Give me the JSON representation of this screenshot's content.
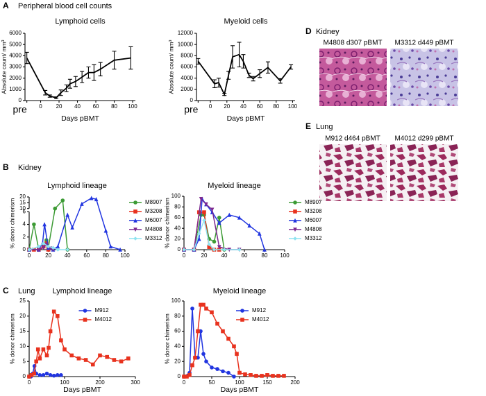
{
  "panels": [
    {
      "letter": "A",
      "title": "Peripheral blood cell counts"
    },
    {
      "letter": "B",
      "title": "Kidney"
    },
    {
      "letter": "C",
      "title": "Lung"
    },
    {
      "letter": "D",
      "title": "Kidney",
      "images": [
        "M4808 d307 pBMT",
        "M3312 d449 pBMT"
      ]
    },
    {
      "letter": "E",
      "title": "Lung",
      "images": [
        "M912 d464 pBMT",
        "M4012 d299 pBMT"
      ]
    }
  ],
  "chart_data": [
    {
      "type": "line",
      "title": "Lymphoid cells",
      "xlabel": "Days pBMT",
      "ylabel": "Absolute count/ mm³",
      "x": [
        -15,
        5,
        10,
        17,
        22,
        28,
        32,
        38,
        45,
        52,
        58,
        65,
        80,
        98
      ],
      "values": [
        3800,
        700,
        400,
        250,
        700,
        1100,
        1500,
        1700,
        2100,
        2500,
        2500,
        2800,
        3600,
        3800
      ],
      "errors": [
        500,
        200,
        100,
        80,
        250,
        300,
        400,
        450,
        500,
        500,
        700,
        600,
        800,
        1000
      ],
      "color": "#000000",
      "xlim": [
        -17,
        103
      ],
      "xticks": [
        {
          "value": -15,
          "label": "pre"
        },
        0,
        20,
        40,
        60,
        80,
        100
      ],
      "ylim": [
        0,
        6000
      ],
      "yticks": [
        0,
        1000,
        2000,
        3000,
        4000,
        5000,
        6000
      ]
    },
    {
      "type": "line",
      "title": "Myeloid cells",
      "xlabel": "Days pBMT",
      "ylabel": "Absolute count/ mm³",
      "x": [
        -15,
        5,
        10,
        17,
        22,
        27,
        35,
        40,
        47,
        52,
        60,
        70,
        85,
        98
      ],
      "values": [
        7000,
        3000,
        3200,
        1100,
        4500,
        7800,
        8200,
        7000,
        4500,
        3900,
        4800,
        5900,
        3500,
        6000
      ],
      "errors": [
        500,
        700,
        800,
        200,
        700,
        2000,
        2200,
        1200,
        400,
        400,
        700,
        1000,
        400,
        400
      ],
      "color": "#000000",
      "xlim": [
        -17,
        103
      ],
      "xticks": [
        {
          "value": -15,
          "label": "pre"
        },
        0,
        20,
        40,
        60,
        80,
        100
      ],
      "ylim": [
        0,
        12000
      ],
      "yticks": [
        0,
        2000,
        4000,
        6000,
        8000,
        10000,
        12000
      ]
    },
    {
      "type": "line",
      "title": "Lymphoid lineage",
      "ylabel": "% donor chimerism",
      "xlim": [
        0,
        100
      ],
      "xticks": [
        0,
        20,
        40,
        60,
        80,
        100
      ],
      "ylim": [
        0,
        20
      ],
      "yticks": [
        0,
        2,
        4,
        6,
        10,
        15,
        20
      ],
      "y_segments": [
        [
          0,
          6
        ],
        [
          10,
          20
        ]
      ],
      "legend": "right",
      "series": [
        {
          "name": "M8907",
          "color": "#3d9b35",
          "marker": "circle",
          "x": [
            0,
            5,
            10,
            15,
            18,
            20,
            27,
            35,
            40
          ],
          "values": [
            0,
            4,
            0,
            0.5,
            1.5,
            0.3,
            10,
            17,
            0
          ]
        },
        {
          "name": "M3208",
          "color": "#e8321e",
          "marker": "square",
          "x": [
            0,
            5,
            10,
            15,
            18,
            20
          ],
          "values": [
            0,
            0,
            0,
            0.5,
            1,
            0
          ]
        },
        {
          "name": "M6007",
          "color": "#2135e0",
          "marker": "triangle",
          "x": [
            0,
            10,
            14,
            16,
            20,
            25,
            30,
            40,
            45,
            55,
            65,
            70,
            80,
            85,
            95
          ],
          "values": [
            0,
            0,
            1,
            4,
            0.3,
            0,
            0.5,
            5.5,
            3.5,
            14,
            19,
            18,
            3,
            0.5,
            0
          ]
        },
        {
          "name": "M4808",
          "color": "#7d2a90",
          "marker": "triangle-down",
          "x": [
            0,
            10,
            15,
            18,
            22,
            25
          ],
          "values": [
            0,
            0,
            0.3,
            0.8,
            0.2,
            0
          ]
        },
        {
          "name": "M3312",
          "color": "#8fe3f0",
          "marker": "diamond",
          "x": [
            0,
            10,
            15,
            20,
            25,
            30,
            40
          ],
          "values": [
            0,
            0.5,
            1,
            0.5,
            0.3,
            0,
            0
          ]
        }
      ]
    },
    {
      "type": "line",
      "title": "Myeloid lineage",
      "ylabel": "% donor chimerism",
      "xlim": [
        0,
        100
      ],
      "xticks": [
        0,
        20,
        40,
        60,
        80,
        100
      ],
      "ylim": [
        0,
        100
      ],
      "yticks": [
        0,
        20,
        40,
        60,
        80,
        100
      ],
      "legend": "right",
      "series": [
        {
          "name": "M8907",
          "color": "#3d9b35",
          "marker": "circle",
          "x": [
            0,
            10,
            17,
            20,
            25,
            30,
            35,
            40
          ],
          "values": [
            0,
            0,
            65,
            65,
            20,
            15,
            60,
            0
          ]
        },
        {
          "name": "M3208",
          "color": "#e8321e",
          "marker": "square",
          "x": [
            0,
            10,
            15,
            20,
            25,
            30,
            35
          ],
          "values": [
            0,
            0,
            70,
            70,
            5,
            0,
            0
          ]
        },
        {
          "name": "M6007",
          "color": "#2135e0",
          "marker": "triangle",
          "x": [
            0,
            10,
            15,
            18,
            22,
            28,
            35,
            45,
            55,
            65,
            75,
            80
          ],
          "values": [
            0,
            0,
            20,
            95,
            85,
            70,
            50,
            65,
            60,
            45,
            30,
            0
          ]
        },
        {
          "name": "M4808",
          "color": "#7d2a90",
          "marker": "triangle-down",
          "x": [
            0,
            10,
            17,
            22,
            28,
            35,
            45,
            55
          ],
          "values": [
            0,
            0,
            95,
            85,
            75,
            5,
            0,
            0
          ]
        },
        {
          "name": "M3312",
          "color": "#8fe3f0",
          "marker": "diamond",
          "x": [
            0,
            10,
            15,
            20,
            25,
            30,
            40,
            55
          ],
          "values": [
            0,
            0,
            30,
            55,
            10,
            0,
            0,
            0
          ]
        }
      ]
    },
    {
      "type": "line",
      "title": "Lymphoid lineage",
      "xlabel": "Days pBMT",
      "ylabel": "% donor chimerism",
      "xlim": [
        0,
        300
      ],
      "xticks": [
        0,
        100,
        200,
        300
      ],
      "ylim": [
        0,
        25
      ],
      "yticks": [
        0,
        5,
        10,
        15,
        20,
        25
      ],
      "legend": "upper center",
      "series": [
        {
          "name": "M912",
          "color": "#2135e0",
          "marker": "circle",
          "x": [
            0,
            5,
            10,
            15,
            20,
            30,
            40,
            50,
            60,
            70,
            80,
            90
          ],
          "values": [
            0,
            0,
            1,
            3.5,
            1,
            0.5,
            0.5,
            1,
            0.5,
            0.3,
            0.5,
            0.5
          ]
        },
        {
          "name": "M4012",
          "color": "#e8321e",
          "marker": "square",
          "x": [
            0,
            7,
            14,
            20,
            25,
            30,
            40,
            50,
            55,
            60,
            70,
            80,
            90,
            100,
            120,
            140,
            160,
            180,
            200,
            220,
            240,
            260,
            280
          ],
          "values": [
            0,
            0.5,
            1,
            5,
            9,
            6,
            9,
            7,
            9.5,
            15,
            21.5,
            20,
            12,
            9,
            7,
            6,
            5.5,
            4,
            7,
            6.5,
            5.5,
            5,
            6
          ]
        }
      ]
    },
    {
      "type": "line",
      "title": "Myeloid lineage",
      "xlabel": "Days pBMT",
      "ylabel": "% donor chimerism",
      "xlim": [
        0,
        200
      ],
      "xticks": [
        0,
        50,
        100,
        150,
        200
      ],
      "ylim": [
        0,
        100
      ],
      "yticks": [
        0,
        20,
        40,
        60,
        80,
        100
      ],
      "legend": "upper center",
      "series": [
        {
          "name": "M912",
          "color": "#2135e0",
          "marker": "circle",
          "x": [
            0,
            10,
            15,
            20,
            25,
            30,
            35,
            40,
            50,
            60,
            70,
            80,
            90
          ],
          "values": [
            0,
            5,
            90,
            25,
            25,
            60,
            30,
            20,
            12,
            10,
            7,
            5,
            0
          ]
        },
        {
          "name": "M4012",
          "color": "#e8321e",
          "marker": "square",
          "x": [
            0,
            5,
            10,
            15,
            20,
            25,
            30,
            35,
            40,
            50,
            60,
            70,
            80,
            90,
            95,
            100,
            110,
            120,
            130,
            140,
            150,
            160,
            170,
            180
          ],
          "values": [
            0,
            0,
            2,
            15,
            25,
            60,
            95,
            95,
            90,
            85,
            70,
            60,
            50,
            40,
            30,
            5,
            3,
            2,
            1,
            1,
            2,
            1,
            1,
            1
          ]
        }
      ]
    }
  ]
}
